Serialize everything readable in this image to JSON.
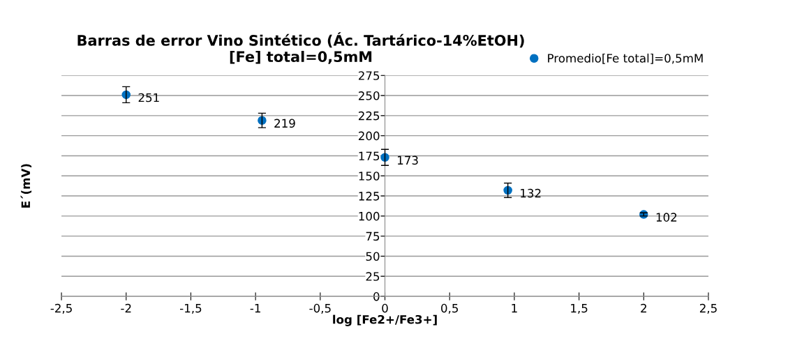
{
  "chart_data": {
    "type": "scatter",
    "title": "Barras de error Vino Sintético (Ác. Tartárico-14%EtOH)\n[Fe] total=0,5mM",
    "xlabel": "log [Fe2+/Fe3+]",
    "ylabel": "E´(mV)",
    "x": [
      -2,
      -0.95,
      0,
      0.95,
      2
    ],
    "series": [
      {
        "name": "Promedio[Fe total]=0,5mM",
        "color": "#0070c0",
        "values": [
          251,
          219,
          173,
          132,
          102
        ],
        "errors": [
          10,
          9,
          10,
          9,
          2
        ]
      }
    ],
    "data_labels": true,
    "marker": "circle",
    "grid": "y",
    "legend": "top right",
    "xlim": [
      -2.5,
      2.5
    ],
    "xticks": [
      {
        "value": -2.5,
        "label": "-2,5"
      },
      -2,
      {
        "value": -1.5,
        "label": "-1,5"
      },
      -1,
      {
        "value": -0.5,
        "label": "-0,5"
      },
      0,
      {
        "value": 0.5,
        "label": "0,5"
      },
      1,
      {
        "value": 1.5,
        "label": "1,5"
      },
      2,
      {
        "value": 2.5,
        "label": "2,5"
      }
    ],
    "ylim": [
      0,
      275
    ],
    "yticks": [
      0,
      25,
      50,
      75,
      100,
      125,
      150,
      175,
      200,
      225,
      250,
      275
    ]
  }
}
